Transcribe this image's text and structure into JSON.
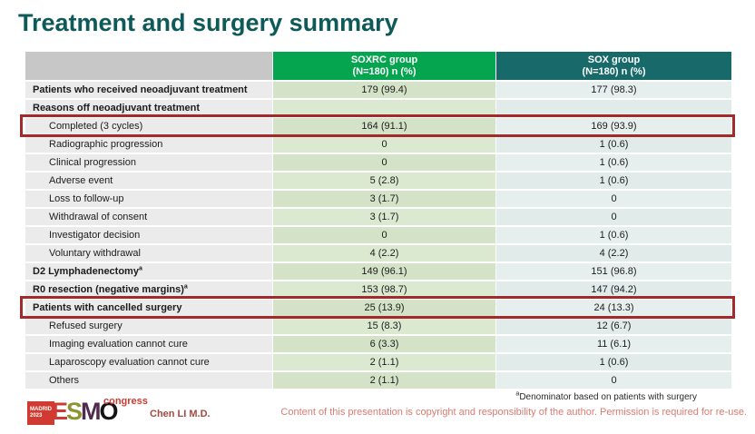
{
  "slide": {
    "title": "Treatment and surgery summary"
  },
  "colors": {
    "title": "#0e5a58",
    "soxrc_header_bg": "#05a550",
    "sox_header_bg": "#186a6a",
    "soxrc_column_bg": "#d4e3c7",
    "sox_column_bg": "#e7efee",
    "label_column_bg": "#ebebeb",
    "highlight_border": "#a32a2a",
    "logo_red": "#d03a30",
    "copyright_red": "#dd7a72"
  },
  "table": {
    "columns": [
      {
        "label": "",
        "sublabel": ""
      },
      {
        "label": "SOXRC group",
        "sublabel": "(N=180)  n (%)"
      },
      {
        "label": "SOX group",
        "sublabel": "(N=180)  n (%)"
      }
    ],
    "rows": [
      {
        "label": "Patients who received neoadjuvant treatment",
        "bold": true,
        "soxrc": "179 (99.4)",
        "sox": "177 (98.3)"
      },
      {
        "label": "Reasons off neoadjuvant treatment",
        "bold": true,
        "soxrc": "",
        "sox": ""
      },
      {
        "label": "Completed (3 cycles)",
        "indent": true,
        "soxrc": "164 (91.1)",
        "sox": "169 (93.9)",
        "highlight": true
      },
      {
        "label": "Radiographic progression",
        "indent": true,
        "soxrc": "0",
        "sox": "1 (0.6)"
      },
      {
        "label": "Clinical progression",
        "indent": true,
        "soxrc": "0",
        "sox": "1 (0.6)"
      },
      {
        "label": "Adverse event",
        "indent": true,
        "soxrc": "5 (2.8)",
        "sox": "1 (0.6)"
      },
      {
        "label": "Loss to follow-up",
        "indent": true,
        "soxrc": "3 (1.7)",
        "sox": "0"
      },
      {
        "label": "Withdrawal of consent",
        "indent": true,
        "soxrc": "3 (1.7)",
        "sox": "0"
      },
      {
        "label": "Investigator decision",
        "indent": true,
        "soxrc": "0",
        "sox": "1 (0.6)"
      },
      {
        "label": "Voluntary withdrawal",
        "indent": true,
        "soxrc": "4 (2.2)",
        "sox": "4 (2.2)"
      },
      {
        "label": "D2 Lymphadenectomy",
        "sup": "a",
        "bold": true,
        "soxrc": "149 (96.1)",
        "sox": "151 (96.8)"
      },
      {
        "label": "R0 resection (negative margins)",
        "sup": "a",
        "bold": true,
        "soxrc": "153 (98.7)",
        "sox": "147 (94.2)"
      },
      {
        "label": "Patients with cancelled surgery",
        "bold": true,
        "soxrc": "25 (13.9)",
        "sox": "24 (13.3)",
        "highlight": true
      },
      {
        "label": "Refused surgery",
        "indent": true,
        "soxrc": "15 (8.3)",
        "sox": "12 (6.7)"
      },
      {
        "label": "Imaging evaluation cannot cure",
        "indent": true,
        "soxrc": "6 (3.3)",
        "sox": "11 (6.1)"
      },
      {
        "label": "Laparoscopy evaluation cannot cure",
        "indent": true,
        "soxrc": "2 (1.1)",
        "sox": "1 (0.6)"
      },
      {
        "label": "Others",
        "indent": true,
        "soxrc": "2 (1.1)",
        "sox": "0"
      }
    ]
  },
  "footer": {
    "logo": {
      "badge_line1": "MADRID",
      "badge_line2": "2023",
      "letter_e": "E",
      "letter_s": "S",
      "letter_m": "M",
      "letter_o": "O",
      "congress": "congress"
    },
    "presenter": "Chen LI M.D.",
    "footnote_sup": "a",
    "footnote": "Denominator based on patients with surgery",
    "copyright": "Content of this presentation is copyright and responsibility of the author. Permission is required for re-use."
  }
}
